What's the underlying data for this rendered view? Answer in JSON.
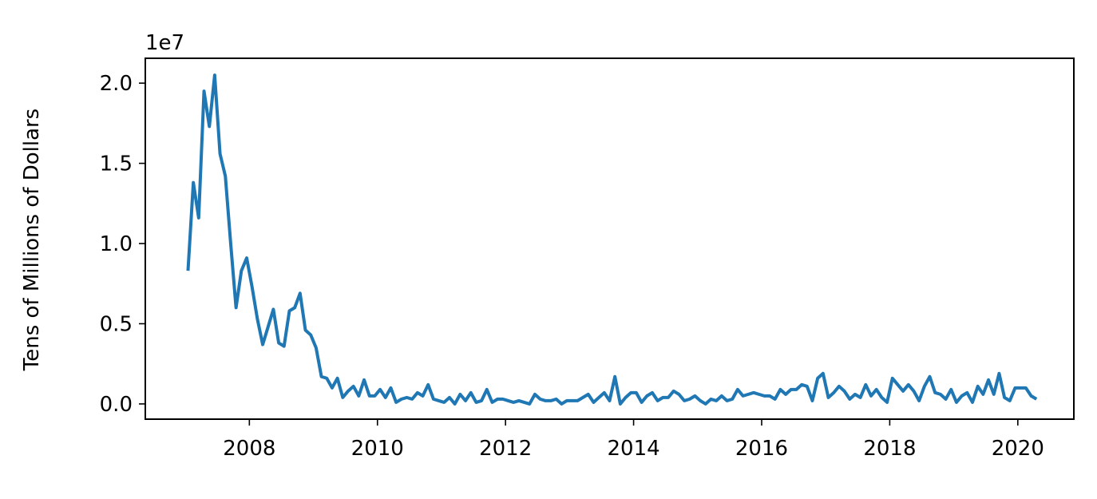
{
  "chart_data": {
    "type": "line",
    "y_label": "Tens of Millions of Dollars",
    "y_offset_text": "1e7",
    "x": [
      "2007-01",
      "2007-02",
      "2007-03",
      "2007-04",
      "2007-05",
      "2007-06",
      "2007-07",
      "2007-08",
      "2007-09",
      "2007-10",
      "2007-11",
      "2007-12",
      "2008-01",
      "2008-02",
      "2008-03",
      "2008-04",
      "2008-05",
      "2008-06",
      "2008-07",
      "2008-08",
      "2008-09",
      "2008-10",
      "2008-11",
      "2008-12",
      "2009-01",
      "2009-02",
      "2009-03",
      "2009-04",
      "2009-05",
      "2009-06",
      "2009-07",
      "2009-08",
      "2009-09",
      "2009-10",
      "2009-11",
      "2009-12",
      "2010-01",
      "2010-02",
      "2010-03",
      "2010-04",
      "2010-05",
      "2010-06",
      "2010-07",
      "2010-08",
      "2010-09",
      "2010-10",
      "2010-11",
      "2010-12",
      "2011-01",
      "2011-02",
      "2011-03",
      "2011-04",
      "2011-05",
      "2011-06",
      "2011-07",
      "2011-08",
      "2011-09",
      "2011-10",
      "2011-11",
      "2011-12",
      "2012-01",
      "2012-02",
      "2012-03",
      "2012-04",
      "2012-05",
      "2012-06",
      "2012-07",
      "2012-08",
      "2012-09",
      "2012-10",
      "2012-11",
      "2012-12",
      "2013-01",
      "2013-02",
      "2013-03",
      "2013-04",
      "2013-05",
      "2013-06",
      "2013-07",
      "2013-08",
      "2013-09",
      "2013-10",
      "2013-11",
      "2013-12",
      "2014-01",
      "2014-02",
      "2014-03",
      "2014-04",
      "2014-05",
      "2014-06",
      "2014-07",
      "2014-08",
      "2014-09",
      "2014-10",
      "2014-11",
      "2014-12",
      "2015-01",
      "2015-02",
      "2015-03",
      "2015-04",
      "2015-05",
      "2015-06",
      "2015-07",
      "2015-08",
      "2015-09",
      "2015-10",
      "2015-11",
      "2015-12",
      "2016-01",
      "2016-02",
      "2016-03",
      "2016-04",
      "2016-05",
      "2016-06",
      "2016-07",
      "2016-08",
      "2016-09",
      "2016-10",
      "2016-11",
      "2016-12",
      "2017-01",
      "2017-02",
      "2017-03",
      "2017-04",
      "2017-05",
      "2017-06",
      "2017-07",
      "2017-08",
      "2017-09",
      "2017-10",
      "2017-11",
      "2017-12",
      "2018-01",
      "2018-02",
      "2018-03",
      "2018-04",
      "2018-05",
      "2018-06",
      "2018-07",
      "2018-08",
      "2018-09",
      "2018-10",
      "2018-11",
      "2018-12",
      "2019-01",
      "2019-02",
      "2019-03",
      "2019-04",
      "2019-05",
      "2019-06",
      "2019-07",
      "2019-08",
      "2019-09",
      "2019-10",
      "2019-11",
      "2019-12",
      "2020-01",
      "2020-02",
      "2020-03",
      "2020-04"
    ],
    "series": [
      {
        "color": "#1f77b4",
        "values": [
          0.83,
          1.38,
          1.16,
          1.95,
          1.73,
          2.05,
          1.56,
          1.42,
          1.0,
          0.6,
          0.83,
          0.91,
          0.73,
          0.53,
          0.37,
          0.48,
          0.59,
          0.38,
          0.36,
          0.58,
          0.6,
          0.69,
          0.46,
          0.43,
          0.35,
          0.17,
          0.16,
          0.1,
          0.16,
          0.04,
          0.08,
          0.11,
          0.05,
          0.15,
          0.05,
          0.05,
          0.09,
          0.04,
          0.1,
          0.01,
          0.03,
          0.04,
          0.03,
          0.07,
          0.05,
          0.12,
          0.03,
          0.02,
          0.01,
          0.04,
          0.0,
          0.06,
          0.02,
          0.07,
          0.01,
          0.02,
          0.09,
          0.01,
          0.03,
          0.03,
          0.02,
          0.01,
          0.02,
          0.01,
          0.0,
          0.06,
          0.03,
          0.02,
          0.02,
          0.03,
          0.0,
          0.02,
          0.02,
          0.02,
          0.04,
          0.06,
          0.01,
          0.04,
          0.07,
          0.02,
          0.17,
          0.0,
          0.04,
          0.07,
          0.07,
          0.01,
          0.05,
          0.07,
          0.02,
          0.04,
          0.04,
          0.08,
          0.06,
          0.02,
          0.03,
          0.05,
          0.02,
          0.0,
          0.03,
          0.02,
          0.05,
          0.02,
          0.03,
          0.09,
          0.05,
          0.06,
          0.07,
          0.06,
          0.05,
          0.05,
          0.03,
          0.09,
          0.06,
          0.09,
          0.09,
          0.12,
          0.11,
          0.02,
          0.16,
          0.19,
          0.04,
          0.07,
          0.11,
          0.08,
          0.03,
          0.06,
          0.04,
          0.12,
          0.05,
          0.09,
          0.04,
          0.01,
          0.16,
          0.12,
          0.08,
          0.12,
          0.08,
          0.02,
          0.11,
          0.17,
          0.07,
          0.06,
          0.03,
          0.09,
          0.01,
          0.05,
          0.07,
          0.01,
          0.11,
          0.06,
          0.15,
          0.06,
          0.19,
          0.04,
          0.02,
          0.1,
          0.1,
          0.1,
          0.05,
          0.03
        ]
      }
    ],
    "xlim": [
      "2006-05",
      "2020-11"
    ],
    "xticks": [
      2008,
      2010,
      2012,
      2014,
      2016,
      2018,
      2020
    ],
    "ylim": [
      -0.095,
      2.155
    ],
    "yticks": [
      {
        "value": 0,
        "label": "0.0"
      },
      0.5,
      {
        "value": 1,
        "label": "1.0"
      },
      1.5,
      {
        "value": 2,
        "label": "2.0"
      }
    ],
    "grid": false
  }
}
